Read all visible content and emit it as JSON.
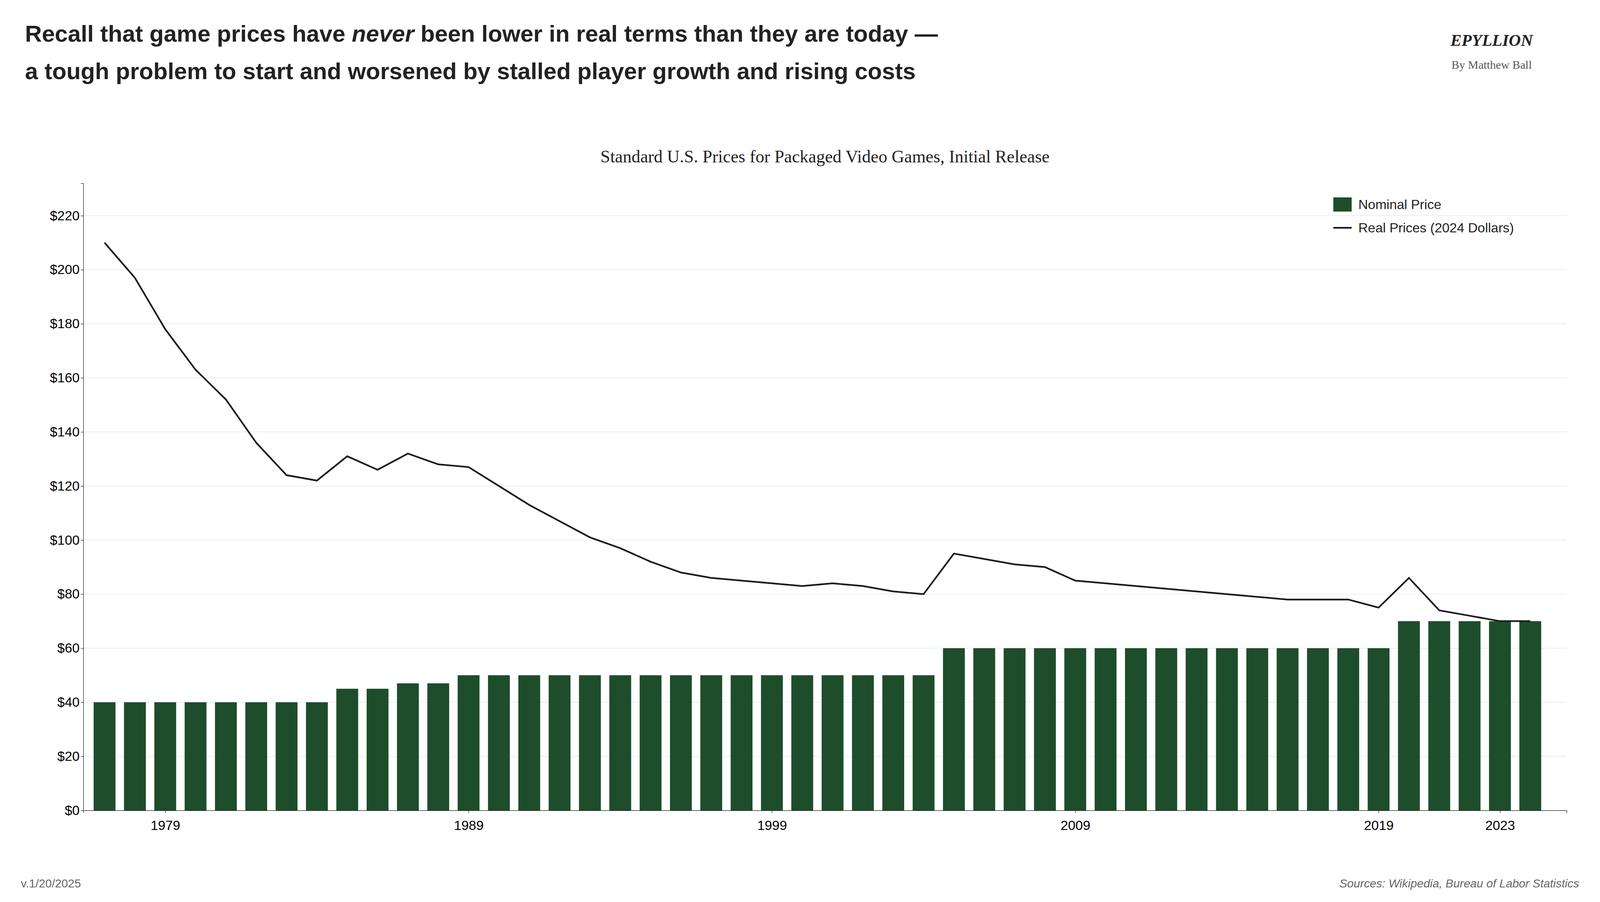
{
  "chart_data": {
    "type": "bar",
    "title": "Standard U.S. Prices for Packaged Video Games, Initial Release",
    "annotations": [
      "Recall that game prices have ",
      "never",
      " been lower in real terms than they are today —",
      "a tough problem to start and worsened by stalled player growth and rising costs",
      "v.1/20/2025",
      "Sources: Wikipedia, Bureau of Labor Statistics",
      "EPYLLION",
      "By Matthew Ball"
    ],
    "x": [
      1977,
      1978,
      1979,
      1980,
      1981,
      1982,
      1983,
      1984,
      1985,
      1986,
      1987,
      1988,
      1989,
      1990,
      1991,
      1992,
      1993,
      1994,
      1995,
      1996,
      1997,
      1998,
      1999,
      2000,
      2001,
      2002,
      2003,
      2004,
      2005,
      2006,
      2007,
      2008,
      2009,
      2010,
      2011,
      2012,
      2013,
      2014,
      2015,
      2016,
      2017,
      2018,
      2019,
      2020,
      2021,
      2022,
      2023,
      2024
    ],
    "series": [
      {
        "name": "Nominal Price",
        "type": "bar",
        "color": "#1e4d2b",
        "values": [
          40,
          40,
          40,
          40,
          40,
          40,
          40,
          40,
          45,
          45,
          47,
          47,
          50,
          50,
          50,
          50,
          50,
          50,
          50,
          50,
          50,
          50,
          50,
          50,
          50,
          50,
          50,
          50,
          60,
          60,
          60,
          60,
          60,
          60,
          60,
          60,
          60,
          60,
          60,
          60,
          60,
          60,
          60,
          70,
          70,
          70,
          70,
          70
        ]
      },
      {
        "name": "Real Prices (2024 Dollars)",
        "type": "line",
        "color": "#1a1a1a",
        "values": [
          210,
          197,
          178,
          163,
          152,
          136,
          124,
          122,
          131,
          126,
          132,
          128,
          127,
          120,
          113,
          107,
          101,
          97,
          92,
          88,
          86,
          85,
          84,
          83,
          84,
          83,
          81,
          80,
          95,
          93,
          91,
          90,
          85,
          84,
          83,
          82,
          81,
          80,
          79,
          78,
          78,
          78,
          75,
          86,
          74,
          72,
          70,
          70
        ]
      }
    ],
    "xlim": [
      1976.3,
      2025.2
    ],
    "xticks": [
      1979,
      1989,
      1999,
      2009,
      2019,
      2023
    ],
    "ylim": [
      0,
      232
    ],
    "yticks": [
      {
        "value": 0,
        "label": "$0"
      },
      {
        "value": 20,
        "label": "$20"
      },
      {
        "value": 40,
        "label": "$40"
      },
      {
        "value": 60,
        "label": "$60"
      },
      {
        "value": 80,
        "label": "$80"
      },
      {
        "value": 100,
        "label": "$100"
      },
      {
        "value": 120,
        "label": "$120"
      },
      {
        "value": 140,
        "label": "$140"
      },
      {
        "value": 160,
        "label": "$160"
      },
      {
        "value": 180,
        "label": "$180"
      },
      {
        "value": 200,
        "label": "$200"
      },
      {
        "value": 220,
        "label": "$220"
      }
    ],
    "grid": true,
    "legend": "upper right"
  }
}
